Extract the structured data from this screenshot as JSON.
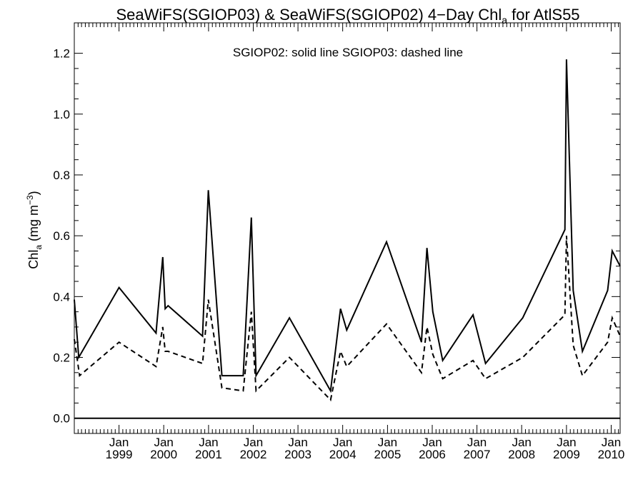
{
  "chart_data": {
    "type": "line",
    "title_main": "SeaWiFS(SGIOP03) & SeaWiFS(SGIOP02) 4−Day Chl",
    "title_sub": "a",
    "title_end": " for AtlS55",
    "ylabel_main": "Chl",
    "ylabel_sub": "a",
    "ylabel_unit": " (mg m",
    "ylabel_sup": "−3",
    "ylabel_close": ")",
    "annotation": "SGIOP02: solid line   SGIOP03: dashed line",
    "ylim": [
      -0.05,
      1.3
    ],
    "xlim": [
      "1998-01-01",
      "2010-03-15"
    ],
    "y_ticks": [
      "0.0",
      "0.2",
      "0.4",
      "0.6",
      "0.8",
      "1.0",
      "1.2"
    ],
    "x_ticks": [
      {
        "date": "1999-01-01",
        "top": "Jan",
        "bottom": "1999"
      },
      {
        "date": "2000-01-01",
        "top": "Jan",
        "bottom": "2000"
      },
      {
        "date": "2001-01-01",
        "top": "Jan",
        "bottom": "2001"
      },
      {
        "date": "2002-01-01",
        "top": "Jan",
        "bottom": "2002"
      },
      {
        "date": "2003-01-01",
        "top": "Jan",
        "bottom": "2003"
      },
      {
        "date": "2004-01-01",
        "top": "Jan",
        "bottom": "2004"
      },
      {
        "date": "2005-01-01",
        "top": "Jan",
        "bottom": "2005"
      },
      {
        "date": "2006-01-01",
        "top": "Jan",
        "bottom": "2006"
      },
      {
        "date": "2007-01-01",
        "top": "Jan",
        "bottom": "2007"
      },
      {
        "date": "2008-01-01",
        "top": "Jan",
        "bottom": "2008"
      },
      {
        "date": "2009-01-01",
        "top": "Jan",
        "bottom": "2009"
      },
      {
        "date": "2010-01-01",
        "top": "Jan",
        "bottom": "2010"
      }
    ],
    "zero_line": true,
    "series": [
      {
        "name": "SGIOP02",
        "style": "solid",
        "color": "#000000",
        "x": [
          "1998-01-01",
          "1998-02-06",
          "1999-01-01",
          "1999-10-30",
          "1999-12-24",
          "2000-01-13",
          "2000-02-06",
          "2000-11-13",
          "2000-12-30",
          "2001-04-20",
          "2001-10-11",
          "2001-12-16",
          "2002-01-24",
          "2002-10-23",
          "2003-09-24",
          "2003-12-14",
          "2004-02-03",
          "2004-12-24",
          "2005-10-05",
          "2005-11-19",
          "2006-01-06",
          "2006-03-27",
          "2006-11-30",
          "2007-03-12",
          "2008-01-10",
          "2008-12-19",
          "2009-01-01",
          "2009-02-25",
          "2009-05-11",
          "2009-12-03",
          "2010-01-09",
          "2010-03-15"
        ],
        "y": [
          0.39,
          0.2,
          0.43,
          0.28,
          0.53,
          0.36,
          0.37,
          0.27,
          0.75,
          0.14,
          0.14,
          0.66,
          0.14,
          0.33,
          0.09,
          0.36,
          0.29,
          0.58,
          0.25,
          0.56,
          0.35,
          0.19,
          0.34,
          0.18,
          0.33,
          0.62,
          1.18,
          0.42,
          0.22,
          0.42,
          0.55,
          0.5
        ]
      },
      {
        "name": "SGIOP03",
        "style": "dashed",
        "color": "#000000",
        "x": [
          "1998-01-01",
          "1998-02-13",
          "1999-01-01",
          "1999-10-30",
          "1999-12-24",
          "2000-01-13",
          "2000-02-06",
          "2000-11-13",
          "2000-12-30",
          "2001-04-20",
          "2001-10-11",
          "2001-12-16",
          "2002-01-24",
          "2002-10-23",
          "2003-09-24",
          "2003-12-14",
          "2004-02-03",
          "2004-12-24",
          "2005-10-05",
          "2005-11-19",
          "2006-01-06",
          "2006-03-27",
          "2006-11-30",
          "2007-03-12",
          "2008-01-10",
          "2008-12-19",
          "2009-01-01",
          "2009-02-25",
          "2009-05-11",
          "2009-12-03",
          "2010-01-09",
          "2010-03-15"
        ],
        "y": [
          0.26,
          0.14,
          0.25,
          0.17,
          0.3,
          0.22,
          0.22,
          0.18,
          0.39,
          0.1,
          0.09,
          0.35,
          0.09,
          0.2,
          0.06,
          0.22,
          0.17,
          0.31,
          0.15,
          0.3,
          0.21,
          0.13,
          0.19,
          0.13,
          0.2,
          0.34,
          0.6,
          0.24,
          0.14,
          0.25,
          0.33,
          0.27
        ]
      }
    ]
  }
}
